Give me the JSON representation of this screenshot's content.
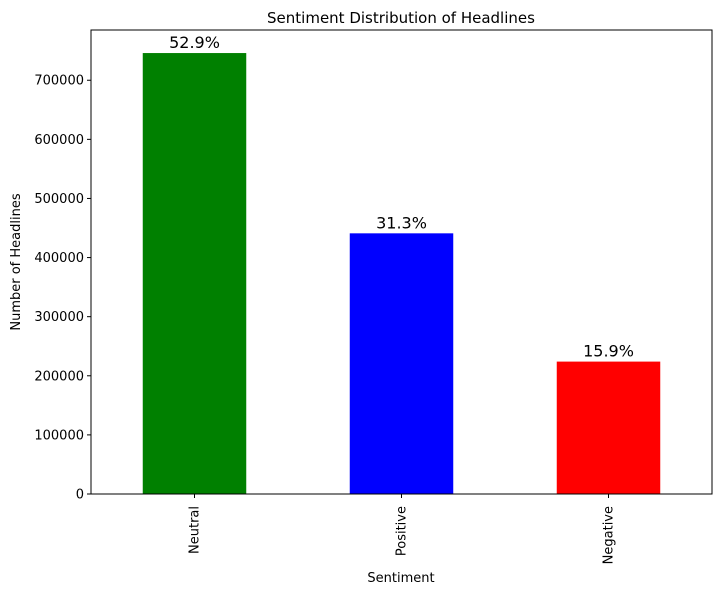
{
  "chart_data": {
    "type": "bar",
    "title": "Sentiment Distribution of Headlines",
    "x_label": "Sentiment",
    "y_label": "Number of Headlines",
    "categories": [
      "Neutral",
      "Positive",
      "Negative"
    ],
    "values": [
      746000,
      441000,
      224000
    ],
    "value_labels": [
      "52.9%",
      "31.3%",
      "15.9%"
    ],
    "colors": [
      "#008000",
      "#0000ff",
      "#ff0000"
    ],
    "ylim": [
      0,
      785000
    ],
    "yticks": [
      0,
      100000,
      200000,
      300000,
      400000,
      500000,
      600000,
      700000
    ]
  }
}
